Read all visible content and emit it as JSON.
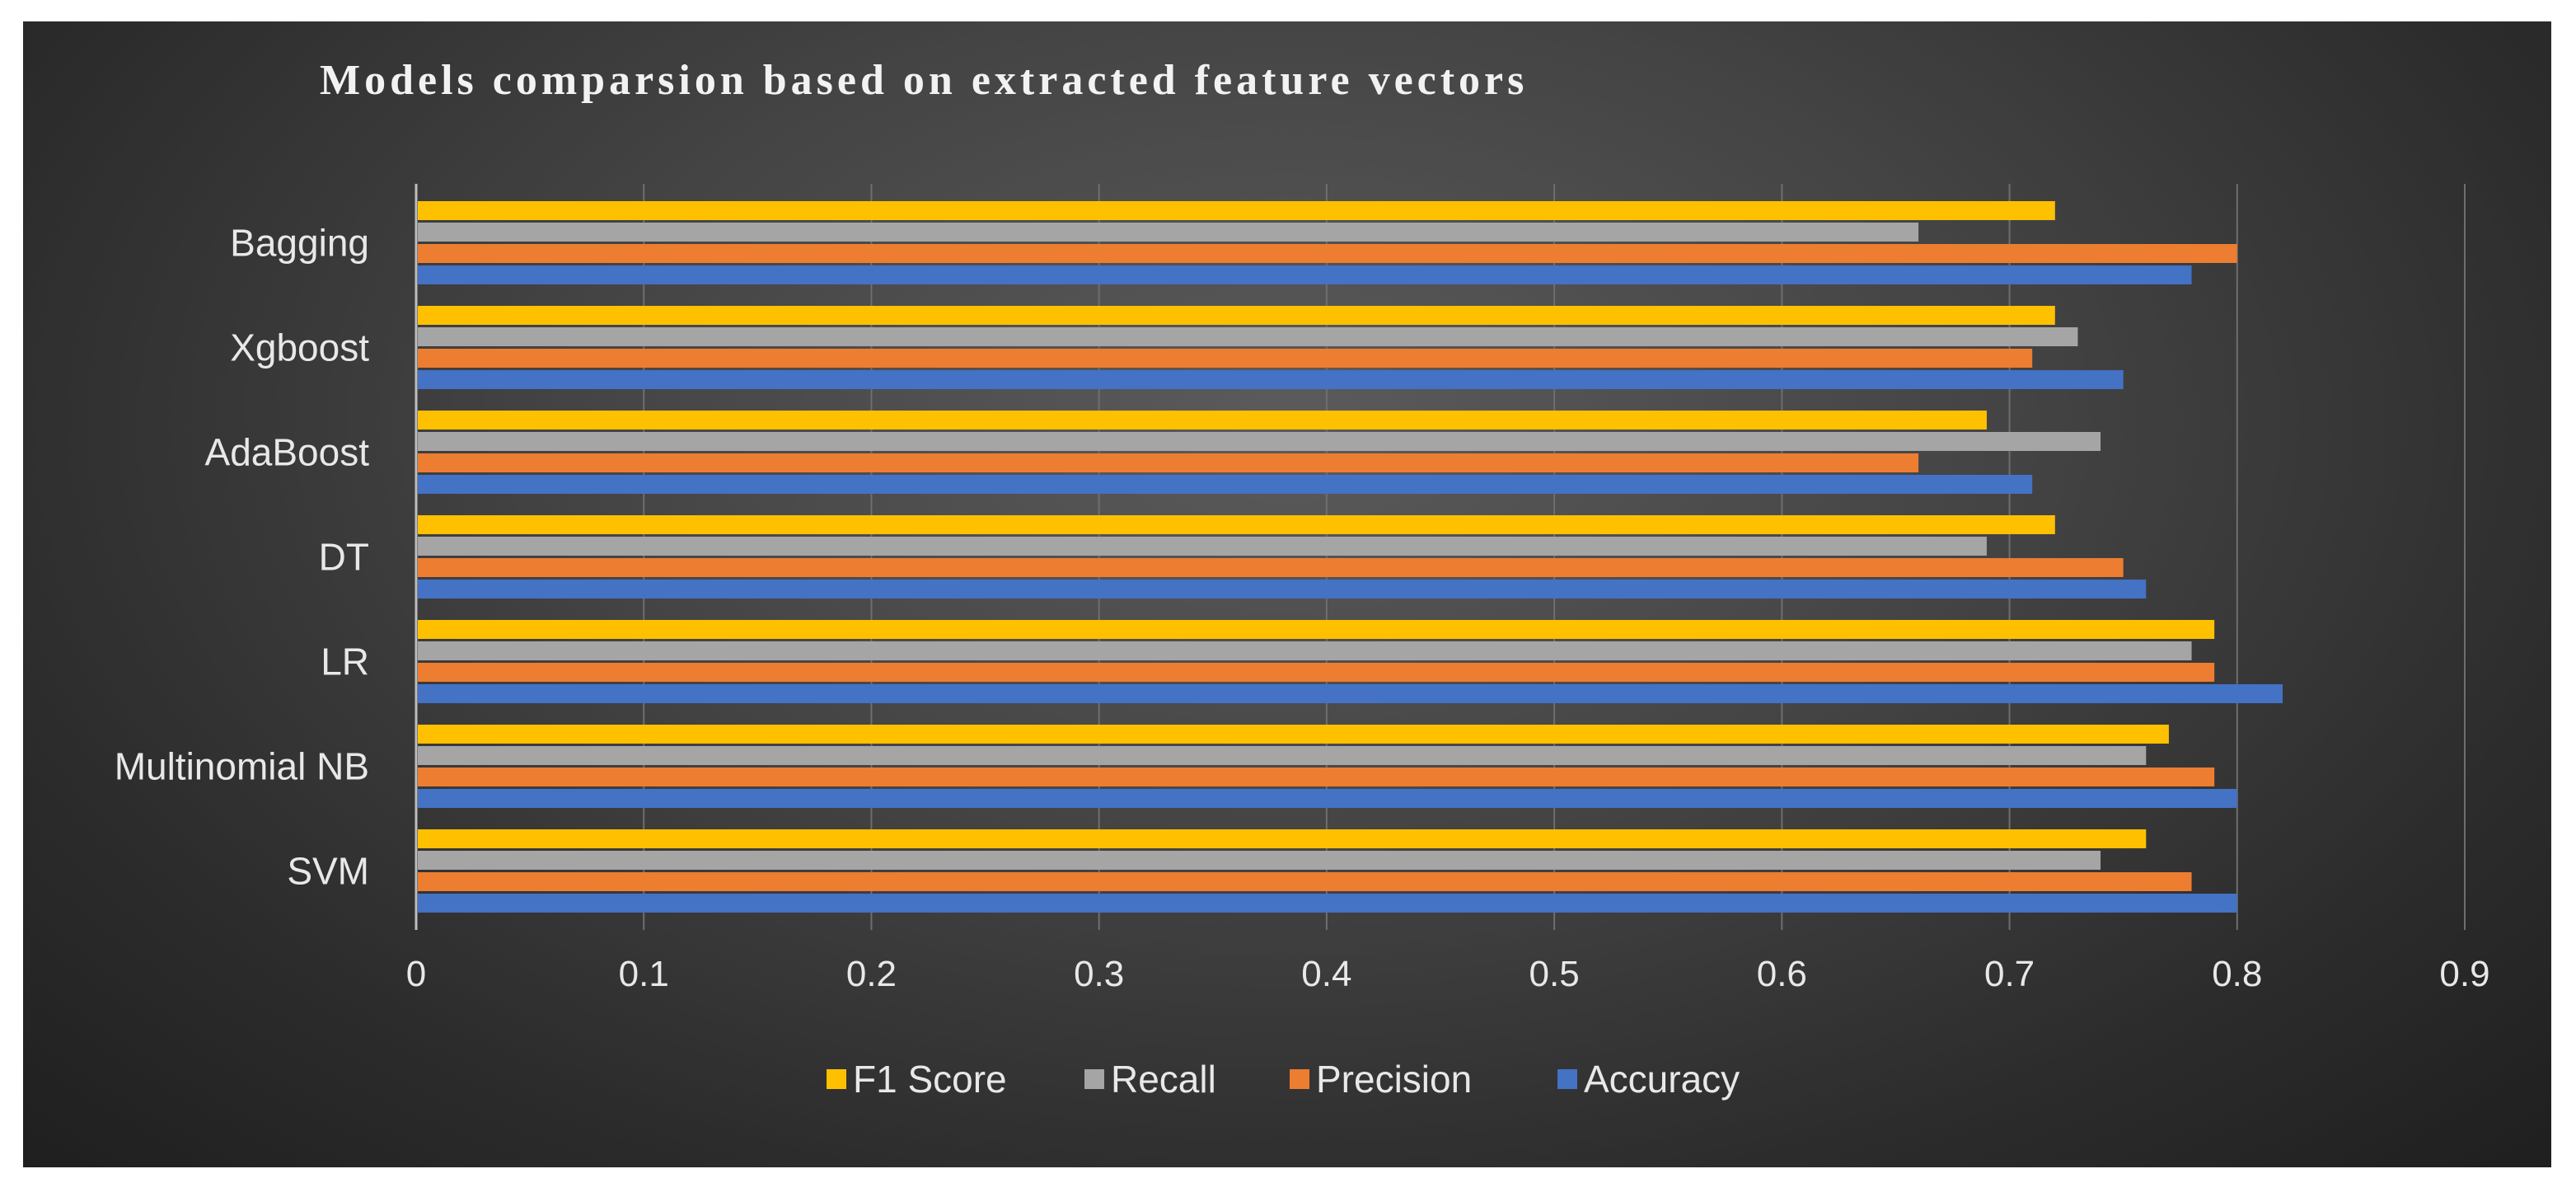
{
  "chart_data": {
    "type": "bar",
    "orientation": "horizontal",
    "title": "Models comparsion based on extracted feature vectors",
    "categories": [
      "Bagging",
      "Xgboost",
      "AdaBoost",
      "DT",
      "LR",
      "Multinomial NB",
      "SVM"
    ],
    "series": [
      {
        "name": "F1 Score",
        "color": "#ffc000",
        "values": [
          0.72,
          0.72,
          0.69,
          0.72,
          0.79,
          0.77,
          0.76
        ]
      },
      {
        "name": "Recall",
        "color": "#a5a5a5",
        "values": [
          0.66,
          0.73,
          0.74,
          0.69,
          0.78,
          0.76,
          0.74
        ]
      },
      {
        "name": "Precision",
        "color": "#ed7d31",
        "values": [
          0.8,
          0.71,
          0.66,
          0.75,
          0.79,
          0.79,
          0.78
        ]
      },
      {
        "name": "Accuracy",
        "color": "#4472c4",
        "values": [
          0.78,
          0.75,
          0.71,
          0.76,
          0.82,
          0.8,
          0.8
        ]
      }
    ],
    "xlim": [
      0,
      0.9
    ],
    "xticks": [
      "0",
      "0.1",
      "0.2",
      "0.3",
      "0.4",
      "0.5",
      "0.6",
      "0.7",
      "0.8",
      "0.9"
    ],
    "grid": true,
    "legend_position": "bottom"
  }
}
